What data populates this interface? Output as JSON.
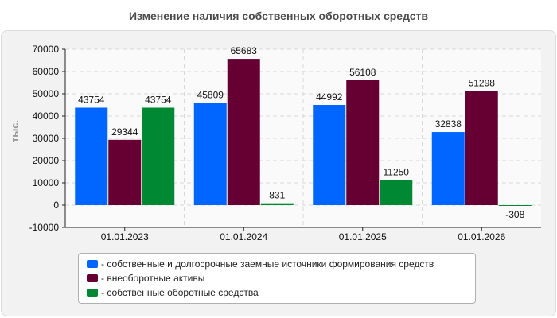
{
  "chart_data": {
    "type": "bar",
    "title": "Изменение наличия собственных оборотных средств",
    "ylabel": "тыс.",
    "xlabel": "",
    "ylim": [
      -10000,
      70000
    ],
    "yticks": [
      -10000,
      0,
      10000,
      20000,
      30000,
      40000,
      50000,
      60000,
      70000
    ],
    "grid": true,
    "legend_position": "bottom",
    "categories": [
      "01.01.2023",
      "01.01.2024",
      "01.01.2025",
      "01.01.2026"
    ],
    "series": [
      {
        "name": "- собственные и долгосрочные заемные источники формирования средств",
        "color": "#0066ff",
        "values": [
          43754,
          45809,
          44992,
          32838
        ]
      },
      {
        "name": "- внеоборотные активы",
        "color": "#660033",
        "values": [
          29344,
          65683,
          56108,
          51298
        ]
      },
      {
        "name": "- собственные оборотные средства",
        "color": "#008833",
        "values": [
          43754,
          831,
          11250,
          -308
        ]
      }
    ]
  }
}
